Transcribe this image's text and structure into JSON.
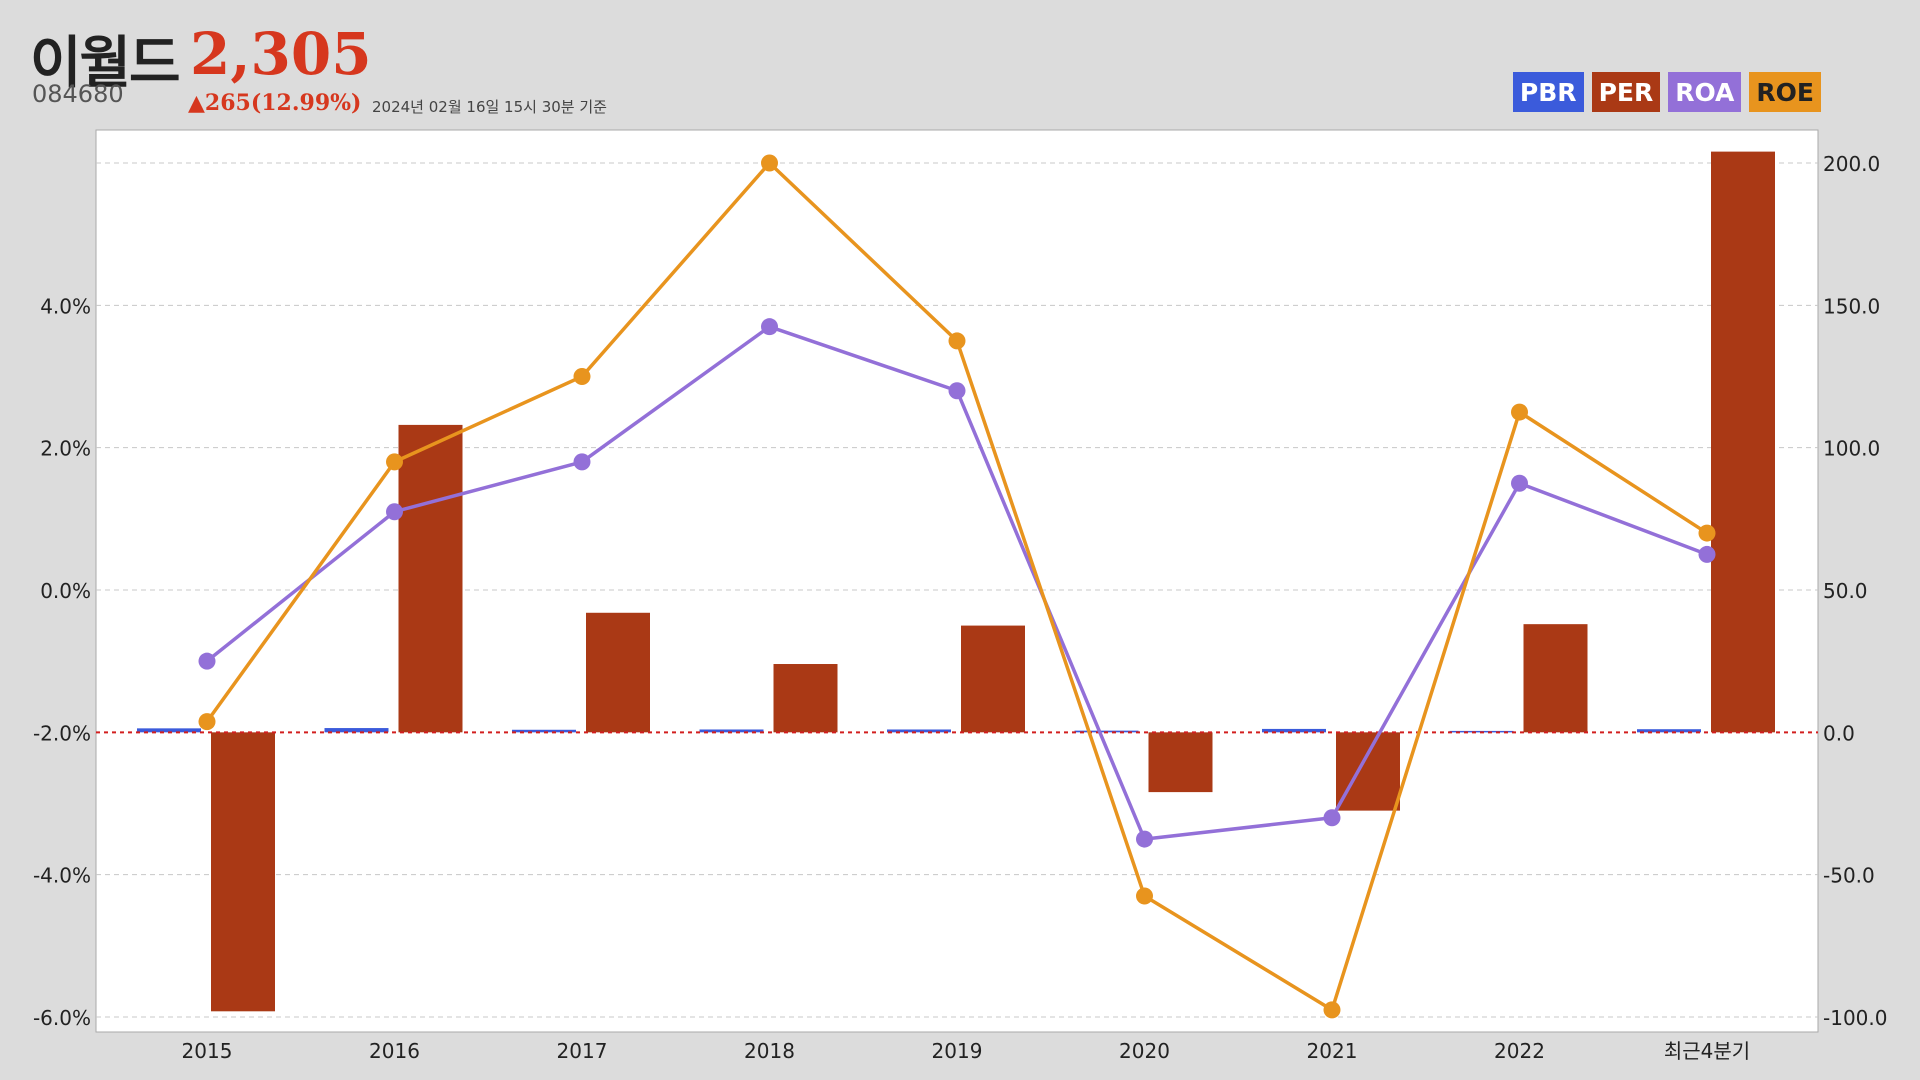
{
  "header": {
    "name": "이월드",
    "price": "2,305",
    "code": "084680",
    "change": "▲265(12.99%)",
    "timestamp": "2024년 02월 16일 15시 30분 기준"
  },
  "legend": [
    {
      "label": "PBR",
      "color": "#3b5bdb"
    },
    {
      "label": "PER",
      "color": "#aa3915"
    },
    {
      "label": "ROA",
      "color": "#9370d8"
    },
    {
      "label": "ROE",
      "color": "#e8941e"
    }
  ],
  "chart_data": {
    "type": "bar",
    "categories": [
      "2015",
      "2016",
      "2017",
      "2018",
      "2019",
      "2020",
      "2021",
      "2022",
      "최근4분기"
    ],
    "left_axis": {
      "min": -6.0,
      "max": 6.0,
      "ticks": [
        -6.0,
        -4.0,
        -2.0,
        0.0,
        2.0,
        4.0
      ],
      "tick_labels": [
        "-6.0%",
        "-4.0%",
        "-2.0%",
        "0.0%",
        "2.0%",
        "4.0%"
      ]
    },
    "right_axis": {
      "min": -100.0,
      "max": 200.0,
      "ticks": [
        -100.0,
        -50.0,
        0.0,
        50.0,
        100.0,
        150.0,
        200.0
      ],
      "tick_labels": [
        "-100.0",
        "-50.0",
        "0.0",
        "50.0",
        "100.0",
        "150.0",
        "200.0"
      ]
    },
    "series": [
      {
        "name": "PBR",
        "type": "bar",
        "axis": "right",
        "values": [
          1.4,
          1.5,
          0.9,
          1.0,
          1.0,
          0.6,
          1.2,
          0.5,
          1.1
        ]
      },
      {
        "name": "PER",
        "type": "bar",
        "axis": "right",
        "values": [
          -98.0,
          108.0,
          42.0,
          24.0,
          37.5,
          -21.0,
          -27.5,
          38.0,
          204.0
        ]
      },
      {
        "name": "ROA",
        "type": "line",
        "axis": "left",
        "values": [
          -1.0,
          1.1,
          1.8,
          3.7,
          2.8,
          -3.5,
          -3.2,
          1.5,
          0.5
        ]
      },
      {
        "name": "ROE",
        "type": "line",
        "axis": "left",
        "values": [
          -1.85,
          1.8,
          3.0,
          6.0,
          3.5,
          -4.3,
          -5.9,
          2.5,
          0.8
        ]
      }
    ],
    "grid": true,
    "legend_position": "top-right"
  }
}
